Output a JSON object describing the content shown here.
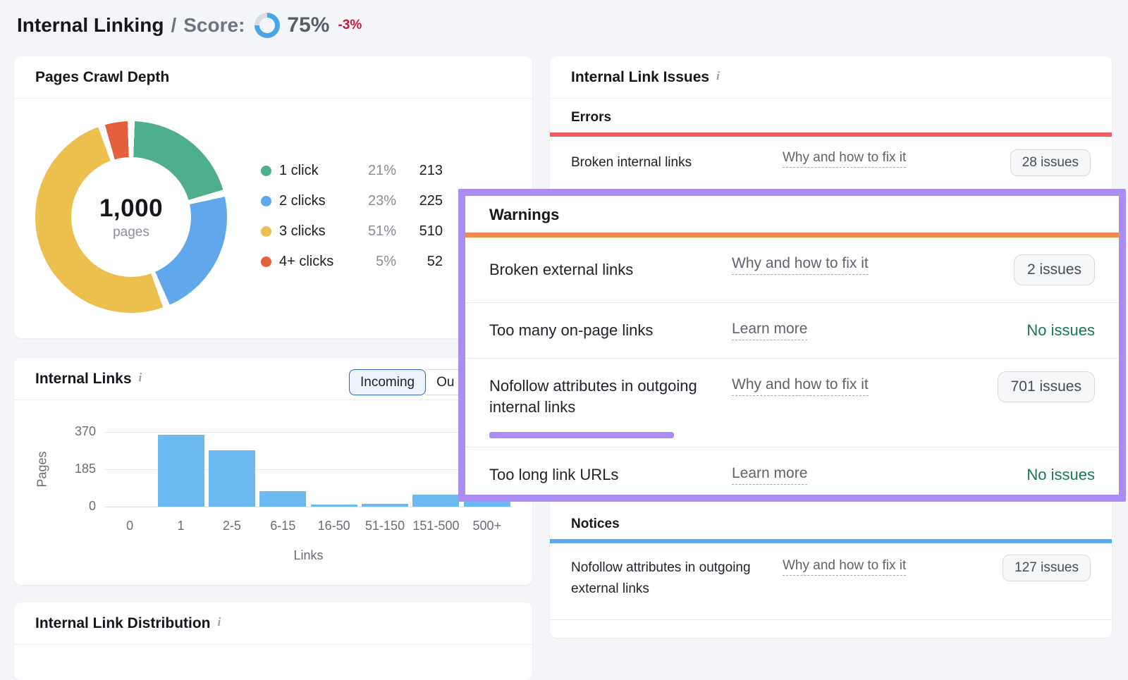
{
  "header": {
    "title": "Internal Linking",
    "separator": "/",
    "score_label": "Score:",
    "score_value": "75%",
    "score_pct": 75,
    "score_delta": "-3%",
    "score_color": "#4aa5e8",
    "score_track_color": "#d8dce3"
  },
  "crawl_depth": {
    "title": "Pages Crawl Depth",
    "center_value": "1,000",
    "center_label": "pages",
    "legend": [
      {
        "label": "1 click",
        "pct": "21%",
        "value": "213",
        "color": "#4fae8d"
      },
      {
        "label": "2 clicks",
        "pct": "23%",
        "value": "225",
        "color": "#60a7eb"
      },
      {
        "label": "3 clicks",
        "pct": "51%",
        "value": "510",
        "color": "#ebc04f"
      },
      {
        "label": "4+ clicks",
        "pct": "5%",
        "value": "52",
        "color": "#e4603c"
      }
    ]
  },
  "internal_links": {
    "title": "Internal Links",
    "toggle_incoming": "Incoming",
    "toggle_outgoing_partial": "Ou"
  },
  "distribution": {
    "title": "Internal Link Distribution"
  },
  "issues": {
    "title": "Internal Link Issues",
    "errors": {
      "heading": "Errors",
      "accent": "#f25d5d",
      "row": {
        "label": "Broken internal links",
        "link": "Why and how to fix it",
        "badge": "28 issues"
      }
    },
    "notices": {
      "heading": "Notices",
      "accent": "#5aabf0",
      "row": {
        "label": "Nofollow attributes in outgoing external links",
        "link": "Why and how to fix it",
        "badge": "127 issues"
      }
    }
  },
  "warnings_overlay": {
    "heading": "Warnings",
    "accent": "#ef8a4c",
    "border_color": "#ab8cf5",
    "rows": [
      {
        "label": "Broken external links",
        "link": "Why and how to fix it",
        "badge": "2 issues"
      },
      {
        "label": "Too many on-page links",
        "link": "Learn more",
        "status": "No issues"
      },
      {
        "label": "Nofollow attributes in outgoing internal links",
        "link": "Why and how to fix it",
        "badge": "701 issues"
      },
      {
        "label": "Too long link URLs",
        "link": "Learn more",
        "status": "No issues"
      }
    ]
  },
  "chart_data": [
    {
      "type": "pie",
      "title": "Pages Crawl Depth",
      "center_total": 1000,
      "center_label": "pages",
      "labels": [
        "1 click",
        "2 clicks",
        "3 clicks",
        "4+ clicks"
      ],
      "values": [
        213,
        225,
        510,
        52
      ],
      "percentages": [
        21,
        23,
        51,
        5
      ],
      "colors": [
        "#4fae8d",
        "#60a7eb",
        "#ebc04f",
        "#e4603c"
      ],
      "legend_position": "right",
      "donut": true
    },
    {
      "type": "bar",
      "title": "Internal Links (Incoming)",
      "categories": [
        "0",
        "1",
        "2-5",
        "6-15",
        "16-50",
        "51-150",
        "151-500",
        "500+"
      ],
      "values": [
        0,
        355,
        280,
        78,
        12,
        14,
        58,
        25
      ],
      "xlabel": "Links",
      "ylabel": "Pages",
      "ylim": [
        0,
        370
      ],
      "yticks": [
        0,
        185,
        370
      ],
      "bar_color": "#6db9f2",
      "grid": true,
      "legend_position": "none"
    }
  ]
}
